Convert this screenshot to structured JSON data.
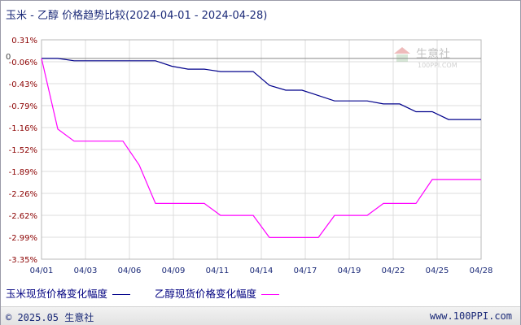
{
  "title": "玉米 - 乙醇 价格趋势比较(2024-04-01 - 2024-04-28)",
  "watermark": {
    "brand": "生意社",
    "site": "100PPI.COM"
  },
  "footer": {
    "copyright": "© 2025.05 生意社",
    "url": "www.100PPI.com"
  },
  "colors": {
    "corn": "#00008b",
    "ethanol": "#ff00ff",
    "grid": "#dcdcdc",
    "zero_line": "#888888",
    "tick_text": "#8b0000"
  },
  "chart_data": {
    "type": "line",
    "title": "玉米 - 乙醇 价格趋势比较(2024-04-01 - 2024-04-28)",
    "ylim": [
      -3.35,
      0.31
    ],
    "y_ticks": [
      "0.31%",
      "-0.06%",
      "-0.43%",
      "-0.79%",
      "-1.16%",
      "-1.52%",
      "-1.89%",
      "-2.26%",
      "-2.62%",
      "-2.99%",
      "-3.35%"
    ],
    "x_tick_labels": [
      "04/01",
      "04/03",
      "04/06",
      "04/09",
      "04/11",
      "04/14",
      "04/17",
      "04/19",
      "04/22",
      "04/25",
      "04/28"
    ],
    "zero_label": "0",
    "grid": true,
    "legend_position": "bottom",
    "x": [
      "04/01",
      "04/02",
      "04/03",
      "04/04",
      "04/05",
      "04/06",
      "04/07",
      "04/08",
      "04/09",
      "04/10",
      "04/11",
      "04/12",
      "04/13",
      "04/14",
      "04/15",
      "04/16",
      "04/17",
      "04/18",
      "04/19",
      "04/20",
      "04/21",
      "04/22",
      "04/23",
      "04/24",
      "04/25",
      "04/26",
      "04/27",
      "04/28"
    ],
    "series": [
      {
        "name": "玉米现货价格变化幅度",
        "color": "#00008b",
        "values": [
          0,
          0,
          -0.04,
          -0.04,
          -0.04,
          -0.04,
          -0.04,
          -0.04,
          -0.13,
          -0.18,
          -0.18,
          -0.22,
          -0.22,
          -0.22,
          -0.45,
          -0.53,
          -0.53,
          -0.62,
          -0.71,
          -0.71,
          -0.71,
          -0.76,
          -0.76,
          -0.89,
          -0.89,
          -1.02,
          -1.02,
          -1.02
        ]
      },
      {
        "name": "乙醇现货价格变化幅度",
        "color": "#ff00ff",
        "values": [
          0,
          -1.18,
          -1.38,
          -1.38,
          -1.38,
          -1.38,
          -1.78,
          -2.42,
          -2.42,
          -2.42,
          -2.42,
          -2.62,
          -2.62,
          -2.62,
          -2.99,
          -2.99,
          -2.99,
          -2.99,
          -2.62,
          -2.62,
          -2.62,
          -2.42,
          -2.42,
          -2.42,
          -2.02,
          -2.02,
          -2.02,
          -2.02
        ]
      }
    ]
  }
}
